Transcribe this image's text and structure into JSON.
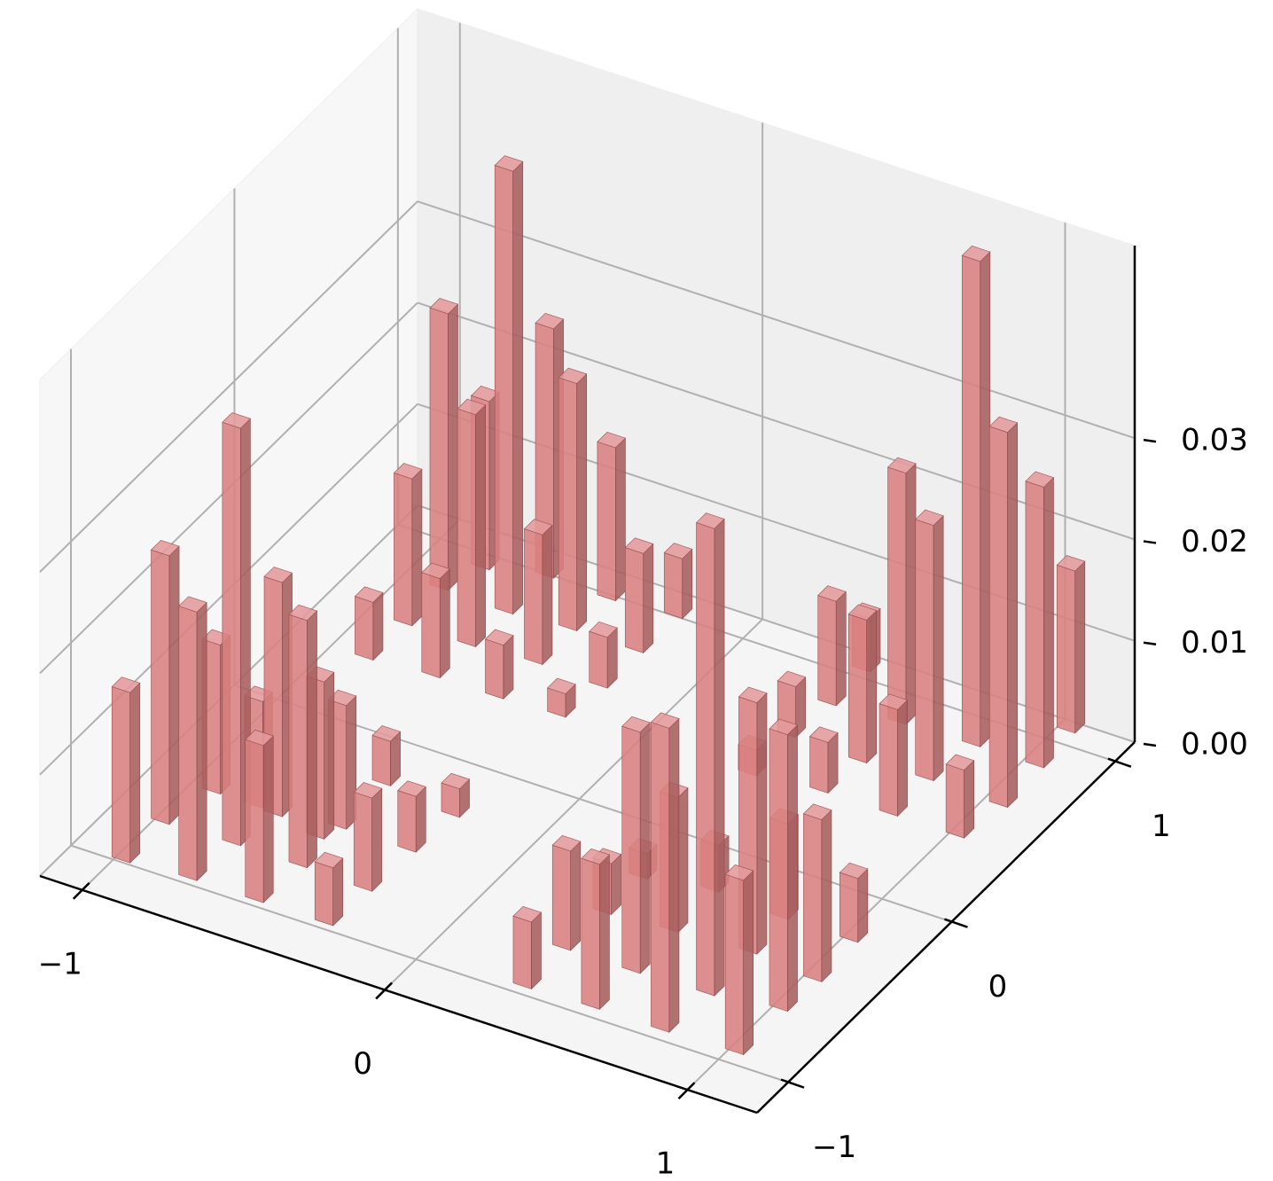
{
  "chart_data": {
    "type": "bar3d",
    "color": "#d97f80",
    "x": [
      -0.98,
      -0.98,
      -0.77,
      -0.93,
      -0.75,
      -0.55,
      -0.79,
      -0.72,
      -0.53,
      -0.56,
      -0.32,
      -0.53,
      -0.31,
      -0.53,
      -0.3,
      -0.28,
      -0.89,
      -0.88,
      -0.68,
      -0.88,
      -0.67,
      -0.83,
      -0.47,
      -0.66,
      -0.46,
      -0.65,
      -0.46,
      -0.27,
      -0.24,
      -0.44,
      -0.24,
      -0.23,
      0.33,
      0.33,
      0.55,
      0.34,
      0.56,
      0.34,
      0.78,
      0.55,
      0.8,
      0.55,
      1.02,
      0.8,
      0.35,
      1.02,
      0.79,
      0.35,
      1.03,
      0.57,
      1.02,
      0.37,
      0.59,
      0.37,
      0.8,
      0.59,
      0.8,
      1.02,
      0.83,
      1.05,
      1.04,
      1.03
    ],
    "y": [
      -0.96,
      -0.72,
      -0.94,
      -0.5,
      -0.71,
      -0.94,
      -0.5,
      -0.51,
      -0.71,
      -0.55,
      -0.94,
      -0.47,
      -0.72,
      -0.2,
      -0.47,
      -0.24,
      0.36,
      0.58,
      0.38,
      0.8,
      0.58,
      0.96,
      0.38,
      0.79,
      0.6,
      1.02,
      0.81,
      0.39,
      0.59,
      1.01,
      0.81,
      1.03,
      -0.93,
      -0.69,
      -0.92,
      -0.46,
      -0.69,
      -0.24,
      -0.92,
      -0.44,
      -0.68,
      -0.19,
      -0.91,
      -0.42,
      0.41,
      -0.64,
      -0.21,
      0.65,
      -0.45,
      0.44,
      -0.21,
      0.86,
      0.64,
      1.07,
      0.44,
      0.88,
      0.66,
      0.44,
      0.89,
      0.65,
      0.89,
      1.1
    ],
    "values": [
      0.0168,
      0.0265,
      0.0265,
      0.0147,
      0.0412,
      0.0155,
      0.0105,
      0.0231,
      0.0244,
      0.0155,
      0.0057,
      0.0122,
      0.0092,
      0.0044,
      0.0055,
      0.0028,
      0.0057,
      0.0145,
      0.0098,
      0.0273,
      0.0229,
      0.0166,
      0.0053,
      0.0437,
      0.0128,
      0.0246,
      0.0244,
      0.0023,
      0.005,
      0.0151,
      0.0098,
      0.0059,
      0.0066,
      0.0098,
      0.0143,
      0.005,
      0.0238,
      0.0025,
      0.03,
      0.0133,
      0.0461,
      0.0046,
      0.0172,
      0.0248,
      0.0025,
      0.0273,
      0.0094,
      0.005,
      0.016,
      0.005,
      0.0063,
      0.0103,
      0.0141,
      0.0053,
      0.0105,
      0.0248,
      0.0252,
      0.0067,
      0.0479,
      0.037,
      0.0277,
      0.016
    ],
    "xlim": [
      -1.14,
      1.23
    ],
    "ylim": [
      -1.19,
      1.12
    ],
    "zlim": [
      0,
      0.049
    ],
    "xticks": [
      {
        "value": -1,
        "label": "−1"
      },
      0,
      1
    ],
    "yticks": [
      {
        "value": -1,
        "label": "−1"
      },
      0,
      1
    ],
    "zticks": [
      {
        "value": 0,
        "label": "0.00"
      },
      0.01,
      0.02,
      0.03
    ],
    "grid": true
  }
}
